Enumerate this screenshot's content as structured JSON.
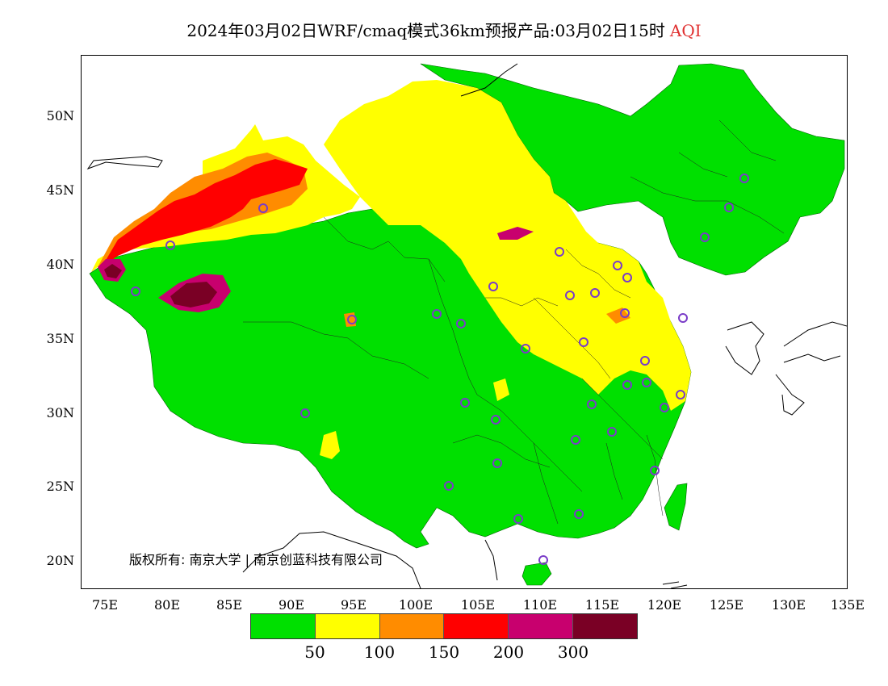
{
  "title": {
    "text": "2024年03月02日WRF/cmaq模式36km预报产品:03月02日15时",
    "variable": "AQI",
    "variable_color": "#e03030"
  },
  "map": {
    "lat_labels": [
      "50N",
      "45N",
      "40N",
      "35N",
      "30N",
      "25N",
      "20N"
    ],
    "lon_labels": [
      "75E",
      "80E",
      "85E",
      "90E",
      "95E",
      "100E",
      "105E",
      "110E",
      "115E",
      "120E",
      "125E",
      "130E",
      "135E"
    ],
    "lon_range": [
      73,
      135
    ],
    "lat_range": [
      18,
      54
    ]
  },
  "copyright": "版权所有: 南京大学 | 南京创蓝科技有限公司",
  "legend": {
    "labels": [
      "50",
      "100",
      "150",
      "200",
      "300"
    ],
    "colors": [
      "#00e000",
      "#ffff00",
      "#ff8c00",
      "#ff0000",
      "#c8006e",
      "#7a0025"
    ]
  },
  "colors": {
    "good": "#00e000",
    "moderate": "#ffff00",
    "usg": "#ff8c00",
    "unhealthy": "#ff0000",
    "very_unhealthy": "#c8006e",
    "hazardous": "#7a0025",
    "station": "#7a3cc8"
  }
}
